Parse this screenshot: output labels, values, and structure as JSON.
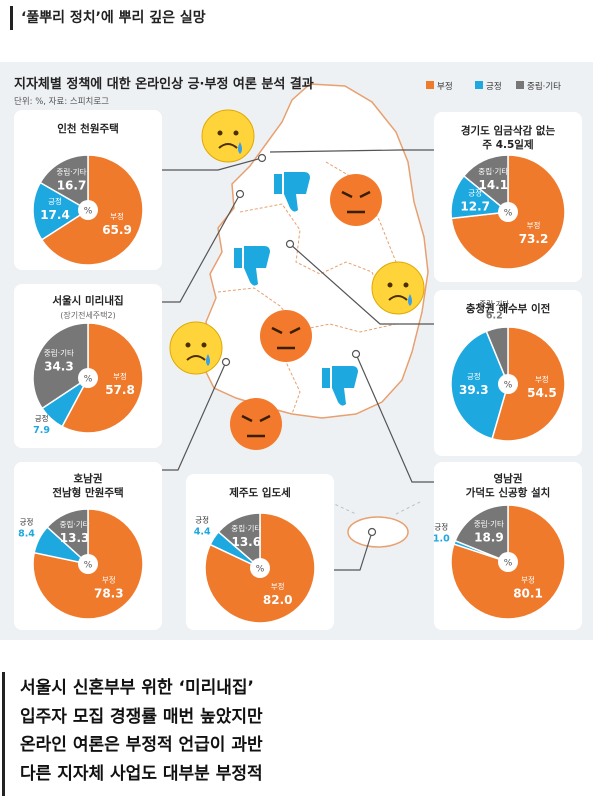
{
  "header": {
    "title": "‘풀뿌리 정치’에 뿌리 깊은 실망"
  },
  "infographic": {
    "title": "지자체별 정책에 대한 온라인상 긍·부정 여론 분석 결과",
    "source": "단위: %, 자료: 스피치로그",
    "colors": {
      "negative": "#f07a2c",
      "positive": "#1da8e0",
      "neutral": "#777777"
    },
    "legend": [
      {
        "key": "negative",
        "label": "부정"
      },
      {
        "key": "positive",
        "label": "긍정"
      },
      {
        "key": "neutral",
        "label": "중립·기타"
      }
    ],
    "center_label": "%"
  },
  "chart_data": [
    {
      "type": "pie",
      "title": "인천 천원주택",
      "labels": [
        "부정",
        "긍정",
        "중립·기타"
      ],
      "values": [
        65.9,
        17.4,
        16.7
      ]
    },
    {
      "type": "pie",
      "title": "서울시 미리내집",
      "subtitle": "(장기전세주택2)",
      "labels": [
        "부정",
        "긍정",
        "중립·기타"
      ],
      "values": [
        57.8,
        7.9,
        34.3
      ]
    },
    {
      "type": "pie",
      "title": "호남권",
      "subtitle": "전남형 만원주택",
      "labels": [
        "부정",
        "긍정",
        "중립·기타"
      ],
      "values": [
        78.3,
        8.4,
        13.3
      ]
    },
    {
      "type": "pie",
      "title": "제주도 입도세",
      "labels": [
        "부정",
        "긍정",
        "중립·기타"
      ],
      "values": [
        82.0,
        4.4,
        13.6
      ]
    },
    {
      "type": "pie",
      "title": "경기도 임금삭감 없는",
      "subtitle": "주 4.5일제",
      "labels": [
        "부정",
        "긍정",
        "중립·기타"
      ],
      "values": [
        73.2,
        12.7,
        14.1
      ]
    },
    {
      "type": "pie",
      "title": "충청권 해수부 이전",
      "labels": [
        "부정",
        "긍정",
        "중립·기타"
      ],
      "values": [
        54.5,
        39.3,
        6.2
      ]
    },
    {
      "type": "pie",
      "title": "영남권",
      "subtitle": "가덕도 신공항 설치",
      "labels": [
        "부정",
        "긍정",
        "중립·기타"
      ],
      "values": [
        80.1,
        1.0,
        18.9
      ]
    }
  ],
  "bottom": {
    "lines": [
      "서울시 신혼부부 위한 ‘미리내집’",
      "입주자 모집 경쟁률 매번 높았지만",
      "온라인 여론은 부정적 언급이 과반",
      "다른 지자체 사업도 대부분 부정적"
    ]
  }
}
